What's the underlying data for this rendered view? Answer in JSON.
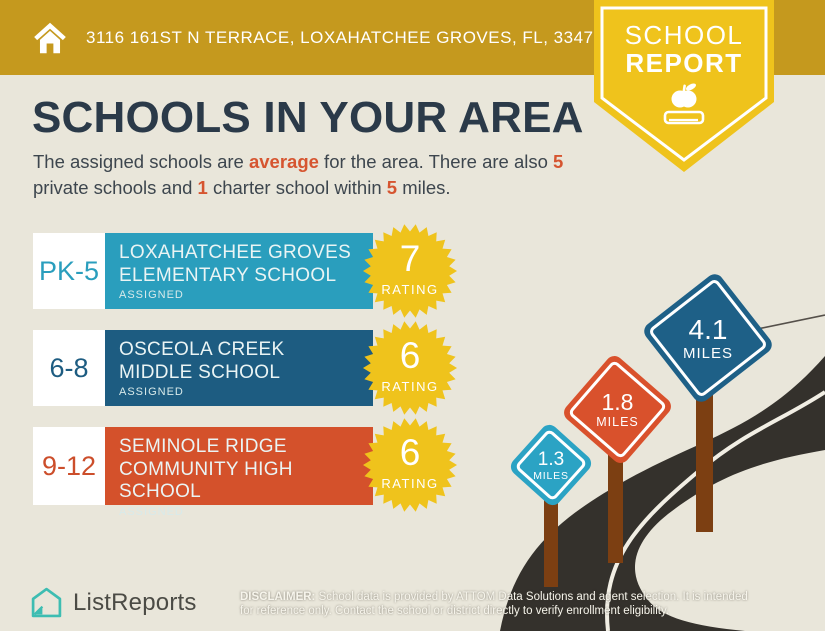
{
  "header": {
    "address": "3116 161ST N TERRACE, LOXAHATCHEE GROVES, FL, 33470",
    "bar_color": "#C5991E"
  },
  "badge": {
    "line1": "SCHOOL",
    "line2": "REPORT",
    "color": "#EFC31C",
    "icon": "apple-on-book-icon"
  },
  "title": "SCHOOLS IN YOUR AREA",
  "subtitle": {
    "line1_parts": [
      {
        "text": "The assigned schools are ",
        "highlight": false
      },
      {
        "text": "average",
        "highlight": true
      },
      {
        "text": " for the area. There are also ",
        "highlight": false
      },
      {
        "text": "5",
        "highlight": true
      }
    ],
    "line2_parts": [
      {
        "text": "private schools and ",
        "highlight": false
      },
      {
        "text": "1",
        "highlight": true
      },
      {
        "text": " charter school within ",
        "highlight": false
      },
      {
        "text": "5",
        "highlight": true
      },
      {
        "text": " miles.",
        "highlight": false
      }
    ],
    "highlight_color": "#D65530"
  },
  "cards": [
    {
      "grade": "PK-5",
      "name_line1": "LOXAHATCHEE GROVES",
      "name_line2": "ELEMENTARY SCHOOL",
      "status": "ASSIGNED",
      "rating": "7",
      "rating_label": "RATING",
      "color": "#2A9EBD"
    },
    {
      "grade": "6-8",
      "name_line1": "OSCEOLA CREEK",
      "name_line2": "MIDDLE SCHOOL",
      "status": "ASSIGNED",
      "rating": "6",
      "rating_label": "RATING",
      "color": "#1D5C81"
    },
    {
      "grade": "9-12",
      "name_line1": "SEMINOLE RIDGE",
      "name_line2": "COMMUNITY HIGH SCHOOL",
      "status": "ASSIGNED",
      "rating": "6",
      "rating_label": "RATING",
      "color": "#D4512B"
    }
  ],
  "signs": [
    {
      "distance": "1.3",
      "unit": "MILES",
      "color": "#2BA3C4"
    },
    {
      "distance": "1.8",
      "unit": "MILES",
      "color": "#D9512C"
    },
    {
      "distance": "4.1",
      "unit": "MILES",
      "color": "#1E6087"
    }
  ],
  "footer": {
    "brand": "ListReports",
    "brand_color": "#3DBDB2",
    "disclaimer_label": "DISCLAIMER:",
    "disclaimer_line1_rest": " School data is provided by ATTOM Data Solutions and agent selection. It is intended",
    "disclaimer_line2": "for reference only. Contact the school or district directly to verify enrollment eligibility."
  },
  "colors": {
    "background": "#E9E6DA",
    "title_text": "#2B3A49",
    "rating_badge": "#EFC31C",
    "road": "#34312C",
    "sign_post": "#7C3F12"
  }
}
